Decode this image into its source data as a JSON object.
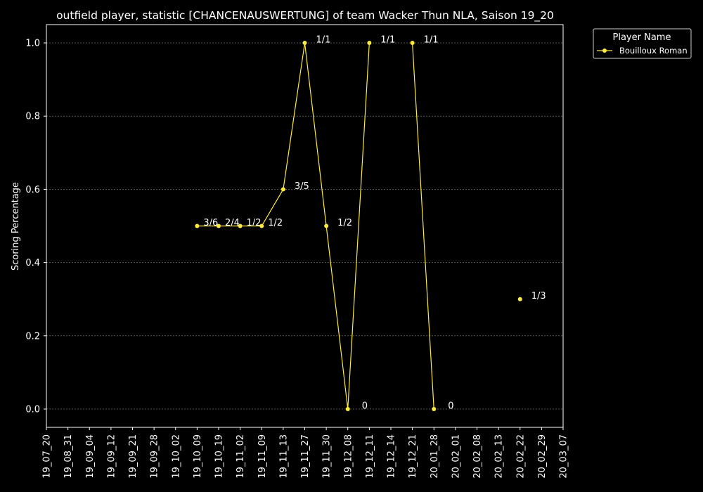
{
  "chart_data": {
    "type": "line",
    "title": "outfield player, statistic [CHANCENAUSWERTUNG] of team Wacker Thun NLA, Saison 19_20",
    "xlabel": "",
    "ylabel": "Scoring Percentage",
    "ylim": [
      -0.05,
      1.05
    ],
    "yticks": [
      "0.0",
      "0.2",
      "0.4",
      "0.6",
      "0.8",
      "1.0"
    ],
    "ytick_values": [
      0.0,
      0.2,
      0.4,
      0.6,
      0.8,
      1.0
    ],
    "categories": [
      "19_07_20",
      "19_08_31",
      "19_09_04",
      "19_09_12",
      "19_09_21",
      "19_09_28",
      "19_10_02",
      "19_10_09",
      "19_10_19",
      "19_11_02",
      "19_11_09",
      "19_11_13",
      "19_11_27",
      "19_11_30",
      "19_12_08",
      "19_12_11",
      "19_12_14",
      "19_12_21",
      "20_01_28",
      "20_02_01",
      "20_02_08",
      "20_02_13",
      "20_02_22",
      "20_02_29",
      "20_03_07"
    ],
    "grid": true,
    "legend_position": "outside-top-right",
    "legend": {
      "title": "Player Name"
    },
    "series": [
      {
        "name": "Bouilloux Roman",
        "color": "#ffeb3b",
        "values": [
          null,
          null,
          null,
          null,
          null,
          null,
          null,
          0.5,
          0.5,
          0.5,
          0.5,
          0.6,
          1.0,
          0.5,
          0.0,
          1.0,
          null,
          1.0,
          0.0,
          null,
          null,
          null,
          0.3,
          null,
          null
        ],
        "labels": [
          null,
          null,
          null,
          null,
          null,
          null,
          null,
          "3/6",
          "2/4",
          "1/2",
          "1/2",
          "3/5",
          "1/1",
          "1/2",
          "0",
          "1/1",
          null,
          "1/1",
          "0",
          null,
          null,
          null,
          "1/3",
          null,
          null
        ]
      }
    ]
  }
}
